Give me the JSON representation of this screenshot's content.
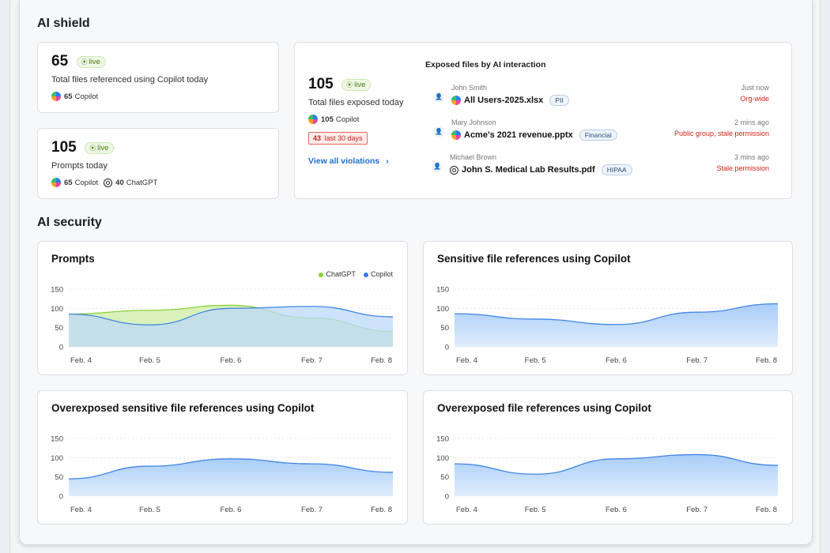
{
  "ai_shield": {
    "title": "AI shield",
    "card1": {
      "count": "65",
      "live": "live",
      "subtitle": "Total files referenced using Copilot today",
      "copilot_count": "65",
      "copilot_label": "Copilot"
    },
    "card2": {
      "count": "105",
      "live": "live",
      "subtitle": "Prompts today",
      "copilot_count": "65",
      "copilot_label": "Copilot",
      "chatgpt_count": "40",
      "chatgpt_label": "ChatGPT"
    },
    "exposed": {
      "count": "105",
      "live": "live",
      "subtitle": "Total files exposed today",
      "copilot_count": "105",
      "copilot_label": "Copilot",
      "violation_count": "43",
      "violation_label": "last 30 days",
      "link": "View all violations",
      "list_title": "Exposed files by AI interaction",
      "rows": [
        {
          "user": "John Smith",
          "file": "All Users-2025.xlsx",
          "tag": "PII",
          "time": "Just now",
          "permission": "Org-wide",
          "source_icon": "copilot-icon"
        },
        {
          "user": "Mary Johnson",
          "file": "Acme's 2021 revenue.pptx",
          "tag": "Financial",
          "time": "2 mins ago",
          "permission": "Public group, stale permission",
          "source_icon": "copilot-icon"
        },
        {
          "user": "Michael Brown",
          "file": "John S. Medical Lab Results.pdf",
          "tag": "HIPAA",
          "time": "3 mins ago",
          "permission": "Stale permission",
          "source_icon": "chatgpt-icon"
        }
      ]
    }
  },
  "ai_security": {
    "title": "AI security",
    "legend": {
      "chatgpt": "ChatGPT",
      "copilot": "Copilot"
    },
    "colors": {
      "copilot_line": "#3f86e3",
      "copilot_fill": "#bcd8f9",
      "chatgpt_line": "#8ad23c",
      "chatgpt_fill": "#d3efb0",
      "overlap_fill": "#a8d4bd"
    }
  },
  "chart_data": [
    {
      "type": "area",
      "title": "Prompts",
      "categories": [
        "Feb. 4",
        "Feb. 5",
        "Feb. 6",
        "Feb. 7",
        "Feb. 8"
      ],
      "series": [
        {
          "name": "ChatGPT",
          "values": [
            85,
            95,
            108,
            75,
            40
          ]
        },
        {
          "name": "Copilot",
          "values": [
            85,
            57,
            100,
            105,
            78
          ]
        }
      ],
      "yticks": [
        0,
        50,
        100,
        150
      ],
      "ylim": [
        0,
        150
      ],
      "legend": "top-right"
    },
    {
      "type": "area",
      "title": "Sensitive file references using Copilot",
      "categories": [
        "Feb. 4",
        "Feb. 5",
        "Feb. 6",
        "Feb. 7",
        "Feb. 8"
      ],
      "series": [
        {
          "values": [
            86,
            72,
            58,
            90,
            112
          ]
        }
      ],
      "yticks": [
        0,
        50,
        100,
        150
      ],
      "ylim": [
        0,
        150
      ]
    },
    {
      "type": "area",
      "title": "Overexposed sensitive file references using Copilot",
      "categories": [
        "Feb. 4",
        "Feb. 5",
        "Feb. 6",
        "Feb. 7",
        "Feb. 8"
      ],
      "series": [
        {
          "values": [
            45,
            78,
            97,
            84,
            62
          ]
        }
      ],
      "yticks": [
        0,
        50,
        100,
        150
      ],
      "ylim": [
        0,
        150
      ]
    },
    {
      "type": "area",
      "title": "Overexposed file references using Copilot",
      "categories": [
        "Feb. 4",
        "Feb. 5",
        "Feb. 6",
        "Feb. 7",
        "Feb. 8"
      ],
      "series": [
        {
          "values": [
            84,
            57,
            97,
            108,
            80
          ]
        }
      ],
      "yticks": [
        0,
        50,
        100,
        150
      ],
      "ylim": [
        0,
        150
      ]
    }
  ]
}
